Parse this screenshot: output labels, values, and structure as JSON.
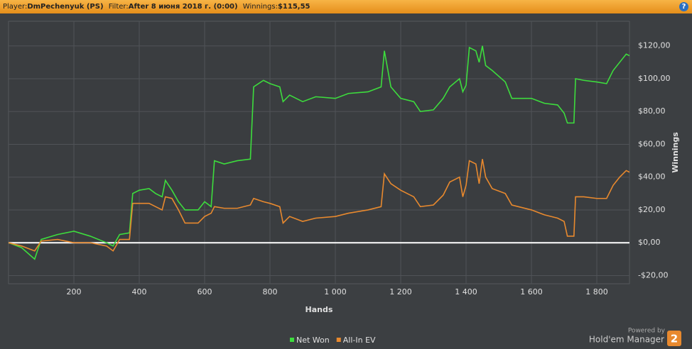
{
  "header": {
    "player_label": "Player:",
    "player": "DmPechenyuk (PS)",
    "filter_label": "Filter:",
    "filter": "After 8 июня 2018 г. (0:00)",
    "winnings_label": "Winnings:",
    "winnings": "$115,55",
    "help": "?"
  },
  "branding": {
    "powered_by": "Powered by",
    "brand": "Hold'em Manager",
    "logo": "2"
  },
  "chart_data": {
    "type": "line",
    "x_label": "Hands",
    "y_label": "Winnings",
    "x": [
      0,
      40,
      80,
      100,
      150,
      200,
      250,
      300,
      320,
      340,
      370,
      380,
      400,
      430,
      450,
      470,
      480,
      500,
      520,
      540,
      580,
      600,
      620,
      630,
      660,
      700,
      740,
      750,
      780,
      800,
      830,
      840,
      860,
      900,
      940,
      1000,
      1040,
      1100,
      1140,
      1150,
      1170,
      1200,
      1240,
      1260,
      1300,
      1330,
      1350,
      1380,
      1390,
      1400,
      1410,
      1430,
      1440,
      1450,
      1460,
      1480,
      1520,
      1540,
      1600,
      1640,
      1680,
      1700,
      1710,
      1730,
      1735,
      1760,
      1800,
      1830,
      1850,
      1870,
      1890,
      1900
    ],
    "series": [
      {
        "name": "Net Won",
        "color": "#3ddc3d",
        "values": [
          0,
          -3,
          -10,
          2,
          5,
          7,
          4,
          0,
          -2,
          5,
          6,
          30,
          32,
          33,
          30,
          28,
          38,
          32,
          25,
          20,
          20,
          25,
          22,
          50,
          48,
          50,
          51,
          95,
          99,
          97,
          95,
          86,
          90,
          86,
          89,
          88,
          91,
          92,
          95,
          117,
          95,
          88,
          86,
          80,
          81,
          88,
          95,
          100,
          92,
          96,
          119,
          117,
          110,
          120,
          108,
          105,
          98,
          88,
          88,
          85,
          84,
          79,
          73,
          73,
          100,
          99,
          98,
          97,
          105,
          110,
          115,
          114
        ]
      },
      {
        "name": "All-In EV",
        "color": "#e8892e",
        "values": [
          0,
          -2,
          -5,
          1,
          2,
          0,
          0,
          -2,
          -5,
          2,
          2,
          24,
          24,
          24,
          22,
          20,
          28,
          27,
          20,
          12,
          12,
          16,
          18,
          22,
          21,
          21,
          23,
          27,
          25,
          24,
          22,
          12,
          16,
          13,
          15,
          16,
          18,
          20,
          22,
          42,
          36,
          32,
          28,
          22,
          23,
          29,
          37,
          40,
          28,
          35,
          50,
          48,
          36,
          51,
          40,
          33,
          30,
          23,
          20,
          17,
          15,
          13,
          4,
          4,
          28,
          28,
          27,
          27,
          35,
          40,
          44,
          43
        ]
      }
    ],
    "xlim": [
      0,
      1900
    ],
    "ylim": [
      -25,
      135
    ],
    "xticks": [
      200,
      400,
      600,
      800,
      {
        "value": 1000,
        "label": "1 000"
      },
      {
        "value": 1200,
        "label": "1 200"
      },
      {
        "value": 1400,
        "label": "1 400"
      },
      {
        "value": 1600,
        "label": "1 600"
      },
      {
        "value": 1800,
        "label": "1 800"
      }
    ],
    "yticks": [
      {
        "value": -20,
        "label": "-$20,00"
      },
      {
        "value": 0,
        "label": "$0,00"
      },
      {
        "value": 20,
        "label": "$20,00"
      },
      {
        "value": 40,
        "label": "$40,00"
      },
      {
        "value": 60,
        "label": "$60,00"
      },
      {
        "value": 80,
        "label": "$80,00"
      },
      {
        "value": 100,
        "label": "$100,00"
      },
      {
        "value": 120,
        "label": "$120,00"
      }
    ],
    "grid": true,
    "legend": "bottom"
  }
}
